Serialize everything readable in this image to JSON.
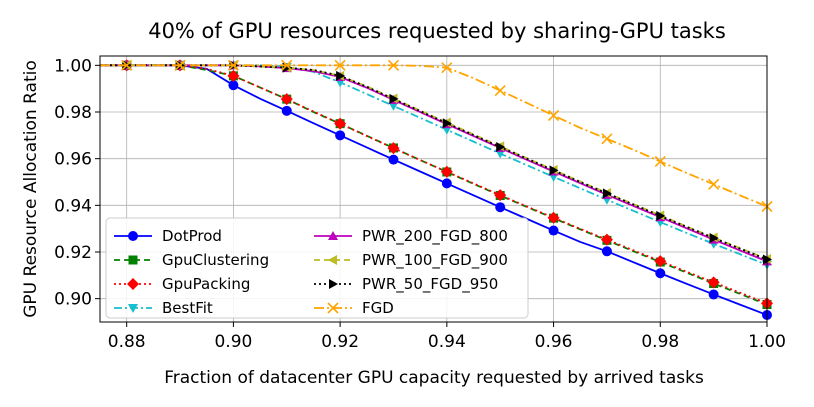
{
  "chart_data": {
    "type": "line",
    "title": "40% of GPU resources requested by sharing-GPU tasks",
    "xlabel": "Fraction of datacenter GPU capacity requested by arrived tasks",
    "ylabel": "GPU Resource Allocation Ratio",
    "xlim": [
      0.875,
      1.0
    ],
    "ylim": [
      0.89,
      1.004
    ],
    "xticks": [
      "0.88",
      "0.90",
      "0.92",
      "0.94",
      "0.96",
      "0.98",
      "1.00"
    ],
    "yticks": [
      "0.90",
      "0.92",
      "0.94",
      "0.96",
      "0.98",
      "1.00"
    ],
    "grid": true,
    "legend_position": "lower-left",
    "series": [
      {
        "name": "DotProd",
        "color": "#0000ff",
        "dash": "",
        "marker": "circle",
        "x": [
          0.875,
          0.88,
          0.885,
          0.89,
          0.895,
          0.9,
          0.905,
          0.91,
          0.915,
          0.92,
          0.925,
          0.93,
          0.935,
          0.94,
          0.945,
          0.95,
          0.955,
          0.96,
          0.965,
          0.97,
          0.975,
          0.98,
          0.985,
          0.99,
          0.995,
          1.0
        ],
        "y": [
          1.0,
          1.0,
          1.0,
          1.0,
          0.9985,
          0.9915,
          0.9857,
          0.9805,
          0.9752,
          0.97,
          0.9648,
          0.9596,
          0.9545,
          0.9494,
          0.9443,
          0.9392,
          0.9342,
          0.9292,
          0.9243,
          0.9203,
          0.9156,
          0.9109,
          0.9063,
          0.9018,
          0.8974,
          0.893
        ]
      },
      {
        "name": "GpuClustering",
        "color": "#008000",
        "dash": "6,4",
        "marker": "square",
        "x": [
          0.875,
          0.88,
          0.885,
          0.89,
          0.895,
          0.9,
          0.905,
          0.91,
          0.915,
          0.92,
          0.925,
          0.93,
          0.935,
          0.94,
          0.945,
          0.95,
          0.955,
          0.96,
          0.965,
          0.97,
          0.975,
          0.98,
          0.985,
          0.99,
          0.995,
          1.0
        ],
        "y": [
          1.0,
          1.0,
          1.0,
          1.0,
          0.998,
          0.9955,
          0.9905,
          0.9855,
          0.98,
          0.975,
          0.9698,
          0.9646,
          0.9594,
          0.9543,
          0.9492,
          0.9442,
          0.9393,
          0.9345,
          0.9297,
          0.925,
          0.9203,
          0.9157,
          0.9111,
          0.9065,
          0.902,
          0.8975
        ]
      },
      {
        "name": "GpuPacking",
        "color": "#ff0000",
        "dash": "2,3",
        "marker": "diamond",
        "x": [
          0.875,
          0.88,
          0.885,
          0.89,
          0.895,
          0.9,
          0.905,
          0.91,
          0.915,
          0.92,
          0.925,
          0.93,
          0.935,
          0.94,
          0.945,
          0.95,
          0.955,
          0.96,
          0.965,
          0.97,
          0.975,
          0.98,
          0.985,
          0.99,
          0.995,
          1.0
        ],
        "y": [
          1.0,
          1.0,
          1.0,
          1.0,
          0.9985,
          0.9955,
          0.9905,
          0.9855,
          0.9802,
          0.975,
          0.9697,
          0.9645,
          0.9594,
          0.9544,
          0.9494,
          0.9444,
          0.9395,
          0.9347,
          0.9299,
          0.9253,
          0.9207,
          0.9161,
          0.9115,
          0.907,
          0.9025,
          0.898
        ]
      },
      {
        "name": "BestFit",
        "color": "#17becf",
        "dash": "8,3,2,3",
        "marker": "triangle-down",
        "x": [
          0.875,
          0.88,
          0.885,
          0.89,
          0.895,
          0.9,
          0.905,
          0.91,
          0.915,
          0.92,
          0.925,
          0.93,
          0.935,
          0.94,
          0.945,
          0.95,
          0.955,
          0.96,
          0.965,
          0.97,
          0.975,
          0.98,
          0.985,
          0.99,
          0.995,
          1.0
        ],
        "y": [
          1.0,
          1.0,
          1.0,
          1.0,
          1.0,
          1.0,
          1.0,
          0.9993,
          0.9972,
          0.9927,
          0.9877,
          0.9826,
          0.9775,
          0.9724,
          0.9673,
          0.9622,
          0.9572,
          0.9522,
          0.9473,
          0.9424,
          0.9376,
          0.9328,
          0.9281,
          0.9235,
          0.919,
          0.9145
        ]
      },
      {
        "name": "PWR_200_FGD_800",
        "color": "#bf00bf",
        "dash": "",
        "marker": "triangle-up",
        "x": [
          0.875,
          0.88,
          0.885,
          0.89,
          0.895,
          0.9,
          0.905,
          0.91,
          0.915,
          0.92,
          0.925,
          0.93,
          0.935,
          0.94,
          0.945,
          0.95,
          0.955,
          0.96,
          0.965,
          0.97,
          0.975,
          0.98,
          0.985,
          0.99,
          0.995,
          1.0
        ],
        "y": [
          1.0,
          1.0,
          1.0,
          1.0,
          1.0,
          1.0,
          0.9995,
          0.9988,
          0.9975,
          0.995,
          0.9904,
          0.9852,
          0.98,
          0.9748,
          0.9697,
          0.9646,
          0.9595,
          0.9545,
          0.9495,
          0.9445,
          0.9397,
          0.9349,
          0.9301,
          0.9253,
          0.9206,
          0.916
        ]
      },
      {
        "name": "PWR_100_FGD_900",
        "color": "#bcbd22",
        "dash": "6,4",
        "marker": "triangle-left",
        "x": [
          0.875,
          0.88,
          0.885,
          0.89,
          0.895,
          0.9,
          0.905,
          0.91,
          0.915,
          0.92,
          0.925,
          0.93,
          0.935,
          0.94,
          0.945,
          0.95,
          0.955,
          0.96,
          0.965,
          0.97,
          0.975,
          0.98,
          0.985,
          0.99,
          0.995,
          1.0
        ],
        "y": [
          1.0,
          1.0,
          1.0,
          1.0,
          1.0,
          1.0,
          0.9995,
          0.999,
          0.998,
          0.9955,
          0.991,
          0.9858,
          0.9806,
          0.9755,
          0.9704,
          0.9653,
          0.9602,
          0.9552,
          0.9502,
          0.9453,
          0.9405,
          0.9357,
          0.9309,
          0.9262,
          0.9216,
          0.917
        ]
      },
      {
        "name": "PWR_50_FGD_950",
        "color": "#000000",
        "dash": "2,3",
        "marker": "triangle-right",
        "x": [
          0.875,
          0.88,
          0.885,
          0.89,
          0.895,
          0.9,
          0.905,
          0.91,
          0.915,
          0.92,
          0.925,
          0.93,
          0.935,
          0.94,
          0.945,
          0.95,
          0.955,
          0.96,
          0.965,
          0.97,
          0.975,
          0.98,
          0.985,
          0.99,
          0.995,
          1.0
        ],
        "y": [
          1.0,
          1.0,
          1.0,
          1.0,
          1.0,
          1.0,
          0.9995,
          0.999,
          0.998,
          0.9955,
          0.9908,
          0.9856,
          0.9804,
          0.9752,
          0.9701,
          0.965,
          0.96,
          0.955,
          0.95,
          0.9451,
          0.9403,
          0.9355,
          0.9307,
          0.926,
          0.9214,
          0.9168
        ]
      },
      {
        "name": "FGD",
        "color": "#ffa500",
        "dash": "10,3,2,3",
        "marker": "x",
        "x": [
          0.875,
          0.88,
          0.885,
          0.89,
          0.895,
          0.9,
          0.905,
          0.91,
          0.915,
          0.92,
          0.925,
          0.93,
          0.935,
          0.94,
          0.945,
          0.95,
          0.955,
          0.96,
          0.965,
          0.97,
          0.975,
          0.98,
          0.985,
          0.99,
          0.995,
          1.0
        ],
        "y": [
          1.0,
          1.0,
          1.0,
          1.0,
          1.0,
          1.0,
          1.0,
          1.0,
          1.0,
          1.0,
          1.0,
          1.0,
          0.9998,
          0.999,
          0.9945,
          0.9892,
          0.9839,
          0.9785,
          0.9732,
          0.9685,
          0.9638,
          0.9588,
          0.9538,
          0.949,
          0.9442,
          0.9395
        ]
      }
    ]
  }
}
